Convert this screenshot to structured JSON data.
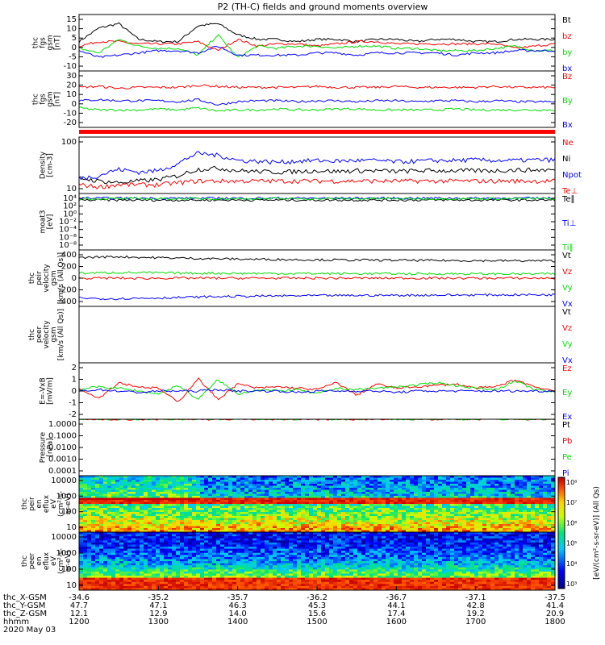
{
  "title": "P2 (TH-C) fields and ground moments overview",
  "colors": {
    "black": "#000000",
    "red": "#ff0000",
    "green": "#00dd00",
    "blue": "#0000ff"
  },
  "chart_data": [
    {
      "type": "line",
      "ylabel": [
        "thc",
        "fgs",
        "gsm",
        "[nT]"
      ],
      "yticks": [
        "15",
        "10",
        "5",
        "0",
        "-5",
        "-10"
      ],
      "ylim": [
        -10,
        15
      ],
      "series": [
        {
          "name": "Bt",
          "color": "#000000",
          "values": [
            3,
            9,
            11,
            4,
            3,
            3,
            10,
            11,
            6,
            4,
            4,
            3,
            4,
            4,
            3,
            4,
            4,
            3,
            4,
            4,
            3,
            3,
            4,
            4,
            4
          ]
        },
        {
          "name": "bz",
          "color": "#ff0000",
          "values": [
            1,
            3,
            3,
            2,
            2,
            2,
            3,
            -1,
            4,
            1,
            2,
            2,
            1,
            2,
            3,
            3,
            2,
            2,
            2,
            2,
            2,
            2,
            0,
            1,
            2
          ]
        },
        {
          "name": "by",
          "color": "#00dd00",
          "values": [
            0,
            -2,
            4,
            1,
            0,
            0,
            -3,
            6,
            -4,
            1,
            0,
            1,
            1,
            0,
            1,
            1,
            0,
            0,
            -1,
            -1,
            -1,
            0,
            1,
            -1,
            -1
          ]
        },
        {
          "name": "bx",
          "color": "#0000ff",
          "values": [
            -1,
            -4,
            -3,
            -2,
            -1,
            -1,
            -2,
            1,
            -3,
            -3,
            -3,
            -3,
            -2,
            -2,
            -3,
            -2,
            -2,
            -2,
            -2,
            -3,
            -2,
            -2,
            -1,
            -1,
            -1
          ]
        }
      ]
    },
    {
      "type": "line",
      "ylabel": [
        "thc",
        "fgs",
        "gsm",
        "[nT]"
      ],
      "yticks": [
        "30",
        "20",
        "10",
        "0",
        "-10",
        "-20"
      ],
      "ylim": [
        -25,
        30
      ],
      "series": [
        {
          "name": "Bz",
          "color": "#ff0000",
          "values": [
            14,
            15,
            13,
            14,
            14,
            14,
            16,
            15,
            14,
            14,
            14,
            14,
            15,
            14,
            14,
            14,
            15,
            14,
            14,
            14,
            14,
            15,
            14,
            14,
            14
          ]
        },
        {
          "name": "By",
          "color": "#00dd00",
          "values": [
            -6,
            -8,
            -8,
            -8,
            -7,
            -8,
            -6,
            -9,
            -8,
            -8,
            -7,
            -8,
            -8,
            -7,
            -7,
            -8,
            -8,
            -8,
            -8,
            -7,
            -8,
            -8,
            -8,
            -8,
            -8
          ]
        },
        {
          "name": "Bx",
          "color": "#0000ff",
          "values": [
            1,
            2,
            1,
            1,
            1,
            0,
            2,
            -3,
            0,
            1,
            1,
            0,
            1,
            1,
            0,
            1,
            1,
            0,
            1,
            1,
            0,
            1,
            0,
            0,
            0
          ]
        }
      ]
    },
    {
      "type": "line",
      "ylabel": [
        "Density",
        "[cm-3]"
      ],
      "yticks": [
        "100",
        "10"
      ],
      "ylim": [
        3,
        250
      ],
      "log": true,
      "series": [
        {
          "name": "Ne",
          "color": "#ff0000",
          "values": [
            6,
            5,
            6,
            6,
            6,
            7,
            8,
            8,
            8,
            8,
            8,
            8,
            8,
            8,
            8,
            8,
            8,
            8,
            8,
            8,
            8,
            8,
            8,
            8,
            8
          ]
        },
        {
          "name": "Ni",
          "color": "#000000",
          "values": [
            10,
            8,
            7,
            8,
            9,
            12,
            20,
            22,
            18,
            17,
            16,
            17,
            18,
            17,
            18,
            18,
            17,
            18,
            18,
            18,
            18,
            18,
            19,
            19,
            19
          ]
        },
        {
          "name": "Npot",
          "color": "#0000ff",
          "values": [
            10,
            12,
            20,
            16,
            18,
            30,
            70,
            60,
            40,
            38,
            35,
            38,
            40,
            38,
            40,
            40,
            36,
            38,
            40,
            40,
            42,
            40,
            40,
            42,
            42
          ]
        },
        {
          "name": "Te⊥",
          "color": "#ff0000",
          "values": []
        }
      ]
    },
    {
      "type": "line",
      "ylabel": [
        "moat3",
        "[eV]"
      ],
      "yticks": [
        "10⁴",
        "10²",
        "10⁰",
        "10⁻²",
        "10⁻⁴",
        "10⁻⁶",
        "10⁻⁸"
      ],
      "ylim": [
        -8,
        4
      ],
      "log": true,
      "series": [
        {
          "name": "Te∥",
          "color": "#000000",
          "values": [
            2.6,
            2.6,
            2.6,
            2.6,
            2.6,
            2.6,
            2.6,
            2.6,
            2.6,
            2.6,
            2.6,
            2.6,
            2.6,
            2.6,
            2.6,
            2.6,
            2.6,
            2.6,
            2.6,
            2.6,
            2.6,
            2.6,
            2.6,
            2.6,
            2.6
          ]
        },
        {
          "name": "Ti⊥",
          "color": "#0000ff",
          "values": [
            3.0,
            3.0,
            3.0,
            3.0,
            3.0,
            3.0,
            3.0,
            3.0,
            3.0,
            3.0,
            3.0,
            3.0,
            3.0,
            3.0,
            3.0,
            3.0,
            3.0,
            3.0,
            3.0,
            3.0,
            3.0,
            3.0,
            3.0,
            3.0,
            3.0
          ]
        },
        {
          "name": "Ti∥",
          "color": "#00dd00",
          "values": [
            2.9,
            2.9,
            2.9,
            2.9,
            2.9,
            2.9,
            2.9,
            2.9,
            2.9,
            2.9,
            2.9,
            2.9,
            2.9,
            2.9,
            2.9,
            2.9,
            2.9,
            2.9,
            2.9,
            2.9,
            2.9,
            2.9,
            2.9,
            2.9,
            2.9
          ]
        }
      ]
    },
    {
      "type": "line",
      "ylabel": [
        "thc",
        "peir",
        "velocity",
        "gsm",
        "[km/s (All Qs)]"
      ],
      "yticks": [
        "400",
        "200",
        "0",
        "-200",
        "-400"
      ],
      "ylim": [
        -400,
        400
      ],
      "series": [
        {
          "name": "Vt",
          "color": "#000000",
          "values": [
            290,
            300,
            305,
            295,
            290,
            285,
            280,
            275,
            270,
            268,
            265,
            262,
            260,
            258,
            256,
            255,
            254,
            252,
            250,
            250,
            248,
            248,
            246,
            246,
            245
          ]
        },
        {
          "name": "Vz",
          "color": "#ff0000",
          "values": [
            0,
            0,
            0,
            -5,
            0,
            0,
            0,
            0,
            0,
            0,
            0,
            0,
            0,
            0,
            0,
            0,
            0,
            0,
            0,
            0,
            0,
            0,
            0,
            0,
            0
          ]
        },
        {
          "name": "Vy",
          "color": "#00dd00",
          "values": [
            70,
            75,
            80,
            78,
            75,
            72,
            70,
            70,
            68,
            68,
            66,
            66,
            65,
            65,
            64,
            64,
            62,
            62,
            62,
            62,
            60,
            60,
            60,
            60,
            60
          ]
        },
        {
          "name": "Vx",
          "color": "#0000ff",
          "values": [
            -280,
            -290,
            -290,
            -285,
            -280,
            -275,
            -268,
            -262,
            -258,
            -255,
            -252,
            -250,
            -248,
            -246,
            -245,
            -244,
            -243,
            -242,
            -240,
            -240,
            -238,
            -238,
            -236,
            -236,
            -235
          ]
        }
      ]
    },
    {
      "type": "line",
      "ylabel": [
        "thc",
        "peer",
        "velocity",
        "gsm",
        "[km/s (All Qs)]"
      ],
      "yticks": [],
      "ylim": [
        -1,
        1
      ],
      "series": [
        {
          "name": "Vt",
          "color": "#000000",
          "values": []
        },
        {
          "name": "Vz",
          "color": "#ff0000",
          "values": []
        },
        {
          "name": "Vy",
          "color": "#00dd00",
          "values": []
        },
        {
          "name": "Vx",
          "color": "#0000ff",
          "values": []
        }
      ]
    },
    {
      "type": "line",
      "ylabel": [
        "E=-VxB",
        "[mV/m]"
      ],
      "yticks": [
        "2",
        "1",
        "0",
        "-1",
        "-2"
      ],
      "ylim": [
        -2,
        2
      ],
      "series": [
        {
          "name": "Ez",
          "color": "#ff0000",
          "values": [
            0.2,
            -0.5,
            0.6,
            0.3,
            0.2,
            -0.8,
            0.9,
            -0.6,
            0.5,
            0.2,
            0.3,
            0.2,
            0.1,
            0.6,
            -0.3,
            0.5,
            0.2,
            0.3,
            0.4,
            0.5,
            0.2,
            0.3,
            0.8,
            0.3,
            0.0
          ]
        },
        {
          "name": "Ey",
          "color": "#00dd00",
          "values": [
            0.1,
            0.3,
            0.2,
            0.0,
            -0.2,
            0.4,
            -0.6,
            0.8,
            -0.2,
            0.1,
            0.0,
            0.1,
            -0.2,
            0.2,
            0.1,
            0.2,
            0.3,
            0.4,
            0.6,
            0.4,
            0.2,
            0.1,
            0.7,
            0.1,
            -0.1
          ]
        },
        {
          "name": "Ex",
          "color": "#0000ff",
          "values": [
            0.0,
            0.1,
            0.0,
            -0.1,
            0.0,
            0.0,
            0.0,
            0.1,
            0.0,
            0.0,
            0.0,
            -0.1,
            0.0,
            0.0,
            0.0,
            0.0,
            -0.1,
            0.0,
            0.0,
            0.0,
            0.0,
            0.0,
            0.0,
            0.0,
            0.0
          ]
        }
      ]
    },
    {
      "type": "line",
      "ylabel": [
        "Pressure",
        "[nPa]"
      ],
      "yticks": [
        "1.0000",
        "0.1000",
        "0.0100",
        "0.0010",
        "0.0001"
      ],
      "ylim": [
        -4,
        0
      ],
      "log": true,
      "series": [
        {
          "name": "Pt",
          "color": "#000000",
          "values": [
            0.07,
            0.15,
            0.09,
            0.07,
            0.08,
            0.12,
            0.16,
            0.15,
            0.16,
            0.16,
            0.15,
            0.16,
            0.16,
            0.16,
            0.17,
            0.17,
            0.16,
            0.17,
            0.17,
            0.17,
            0.17,
            0.17,
            0.17,
            0.17,
            0.17
          ]
        },
        {
          "name": "Pb",
          "color": "#ff0000",
          "values": [
            0.005,
            0.004,
            0.006,
            0.005,
            0.005,
            0.007,
            0.008,
            0.006,
            0.006,
            0.007,
            0.006,
            0.007,
            0.007,
            0.007,
            0.006,
            0.007,
            0.007,
            0.007,
            0.007,
            0.007,
            0.007,
            0.006,
            0.007,
            0.007,
            0.007
          ]
        },
        {
          "name": "Pe",
          "color": "#00dd00",
          "values": [
            0.006,
            0.007,
            0.007,
            0.006,
            0.006,
            0.008,
            0.015,
            0.018,
            0.016,
            0.015,
            0.015,
            0.015,
            0.016,
            0.015,
            0.016,
            0.016,
            0.015,
            0.016,
            0.016,
            0.016,
            0.016,
            0.016,
            0.016,
            0.016,
            0.016
          ]
        },
        {
          "name": "Pi",
          "color": "#0000ff",
          "values": [
            0.06,
            0.14,
            0.08,
            0.06,
            0.07,
            0.11,
            0.15,
            0.14,
            0.15,
            0.15,
            0.14,
            0.15,
            0.15,
            0.15,
            0.16,
            0.16,
            0.15,
            0.16,
            0.16,
            0.16,
            0.16,
            0.16,
            0.16,
            0.16,
            0.16
          ]
        }
      ]
    },
    {
      "type": "heatmap",
      "ylabel": [
        "thc",
        "peir",
        "en",
        "eflux",
        "eV",
        "(cm²-s-",
        "sr-eV)"
      ],
      "yticks": [
        "10000",
        "1000",
        "100",
        "10"
      ],
      "ylim": [
        5,
        25000
      ],
      "log": true
    },
    {
      "type": "heatmap",
      "ylabel": [
        "thc",
        "peer",
        "en",
        "eflux",
        "eV",
        "(cm²-s-",
        "sr-eV)"
      ],
      "yticks": [
        "10000",
        "1000",
        "100",
        "10"
      ],
      "ylim": [
        5,
        25000
      ],
      "log": true
    }
  ],
  "colorbar": {
    "ticks": [
      "10⁸",
      "10⁷",
      "10⁶",
      "10⁵",
      "10⁴",
      "10³"
    ],
    "label": "[eV/(cm²-s-sr-eV)] (All Qs)"
  },
  "xaxis": {
    "labels": [
      "thc_X-GSM",
      "thc_Y-GSM",
      "thc_Z-GSM",
      "hhmm",
      "2020 May 03"
    ],
    "columns": [
      [
        "-34.6",
        "47.7",
        "12.1",
        "1200"
      ],
      [
        "-35.2",
        "47.1",
        "12.9",
        "1300"
      ],
      [
        "-35.7",
        "46.3",
        "14.0",
        "1400"
      ],
      [
        "-36.2",
        "45.3",
        "15.6",
        "1500"
      ],
      [
        "-36.7",
        "44.1",
        "17.4",
        "1600"
      ],
      [
        "-37.1",
        "42.8",
        "19.2",
        "1700"
      ],
      [
        "-37.5",
        "41.4",
        "20.9",
        "1800"
      ]
    ]
  }
}
